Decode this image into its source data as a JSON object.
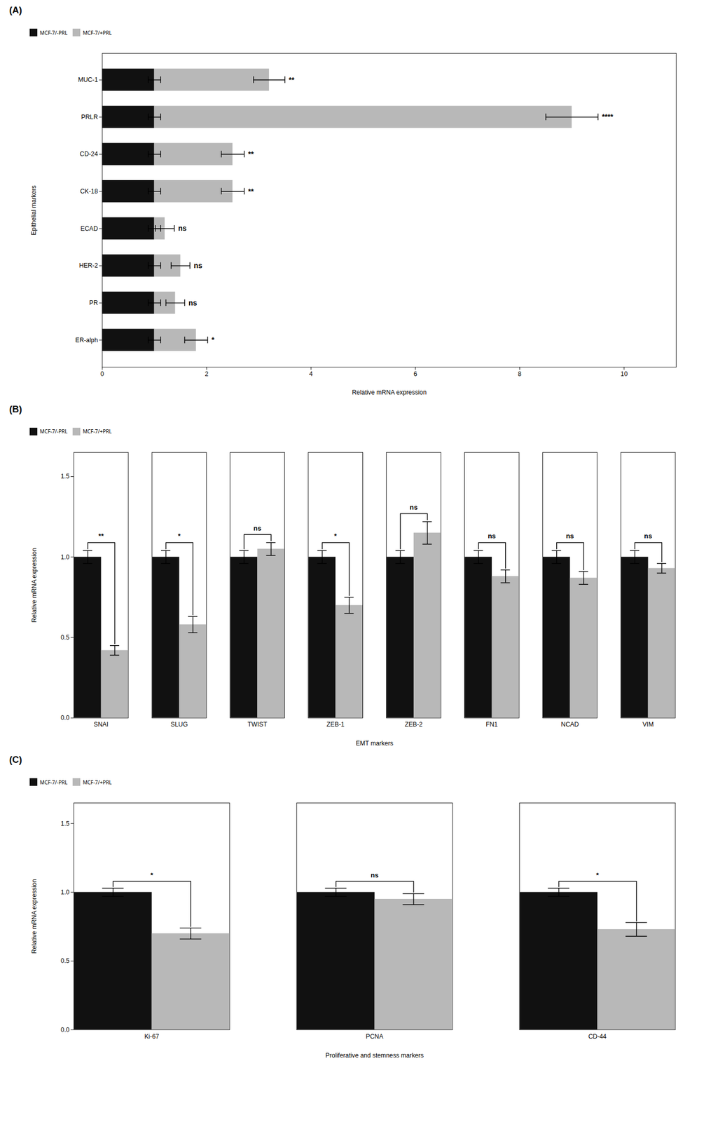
{
  "chart_data": [
    {
      "type": "bar",
      "orientation": "horizontal",
      "stacked": true,
      "title": "(A)",
      "xlabel": "Relative mRNA expression",
      "ylabel": "Epithelial markers",
      "categories": [
        "MUC-1",
        "PRLR",
        "CD-24",
        "CK-18",
        "ECAD",
        "HER-2",
        "PR",
        "ER-alph"
      ],
      "series": [
        {
          "name": "MCF-7/-PRL",
          "color": "#111111",
          "values": [
            1.0,
            1.0,
            1.0,
            1.0,
            1.0,
            1.0,
            1.0,
            1.0
          ],
          "errors": [
            0.12,
            0.12,
            0.12,
            0.12,
            0.12,
            0.12,
            0.12,
            0.12
          ]
        },
        {
          "name": "MCF-7/+PRL",
          "color": "#b8b8b8",
          "values": [
            2.2,
            8.0,
            1.5,
            1.5,
            0.2,
            0.5,
            0.4,
            0.8
          ],
          "errors": [
            0.3,
            0.5,
            0.22,
            0.22,
            0.18,
            0.18,
            0.18,
            0.22
          ]
        }
      ],
      "annotations": [
        "**",
        "****",
        "**",
        "**",
        "ns",
        "ns",
        "ns",
        "*"
      ],
      "xlim": [
        0,
        11
      ],
      "xticks": [
        0,
        2,
        4,
        6,
        8,
        10
      ]
    },
    {
      "type": "bar",
      "title": "(B)",
      "xlabel": "EMT markers",
      "ylabel": "Relative mRNA expression",
      "categories": [
        "SNAI",
        "SLUG",
        "TWIST",
        "ZEB-1",
        "ZEB-2",
        "FN1",
        "NCAD",
        "VIM"
      ],
      "series": [
        {
          "name": "MCF-7/-PRL",
          "color": "#111111",
          "values": [
            1.0,
            1.0,
            1.0,
            1.0,
            1.0,
            1.0,
            1.0,
            1.0
          ],
          "errors": [
            0.04,
            0.04,
            0.04,
            0.04,
            0.04,
            0.04,
            0.04,
            0.04
          ]
        },
        {
          "name": "MCF-7/+PRL",
          "color": "#b8b8b8",
          "values": [
            0.42,
            0.58,
            1.05,
            0.7,
            1.15,
            0.88,
            0.87,
            0.93
          ],
          "errors": [
            0.03,
            0.05,
            0.04,
            0.05,
            0.07,
            0.04,
            0.04,
            0.03
          ]
        }
      ],
      "annotations": [
        "**",
        "*",
        "ns",
        "*",
        "ns",
        "ns",
        "ns",
        "ns"
      ],
      "ylim": [
        0.0,
        1.65
      ],
      "yticks": [
        {
          "value": 0.0,
          "label": "0.0"
        },
        0.5,
        {
          "value": 1.0,
          "label": "1.0"
        },
        1.5
      ]
    },
    {
      "type": "bar",
      "title": "(C)",
      "xlabel": "Proliferative and stemness markers",
      "ylabel": "Relative mRNA expression",
      "categories": [
        "Ki-67",
        "PCNA",
        "CD-44"
      ],
      "series": [
        {
          "name": "MCF-7/-PRL",
          "color": "#111111",
          "values": [
            1.0,
            1.0,
            1.0
          ],
          "errors": [
            0.03,
            0.03,
            0.03
          ]
        },
        {
          "name": "MCF-7/+PRL",
          "color": "#b8b8b8",
          "values": [
            0.7,
            0.95,
            0.73
          ],
          "errors": [
            0.04,
            0.04,
            0.05
          ]
        }
      ],
      "annotations": [
        "*",
        "ns",
        "*"
      ],
      "ylim": [
        0.0,
        1.65
      ],
      "yticks": [
        {
          "value": 0.0,
          "label": "0.0"
        },
        0.5,
        {
          "value": 1.0,
          "label": "1.0"
        },
        1.5
      ]
    }
  ]
}
